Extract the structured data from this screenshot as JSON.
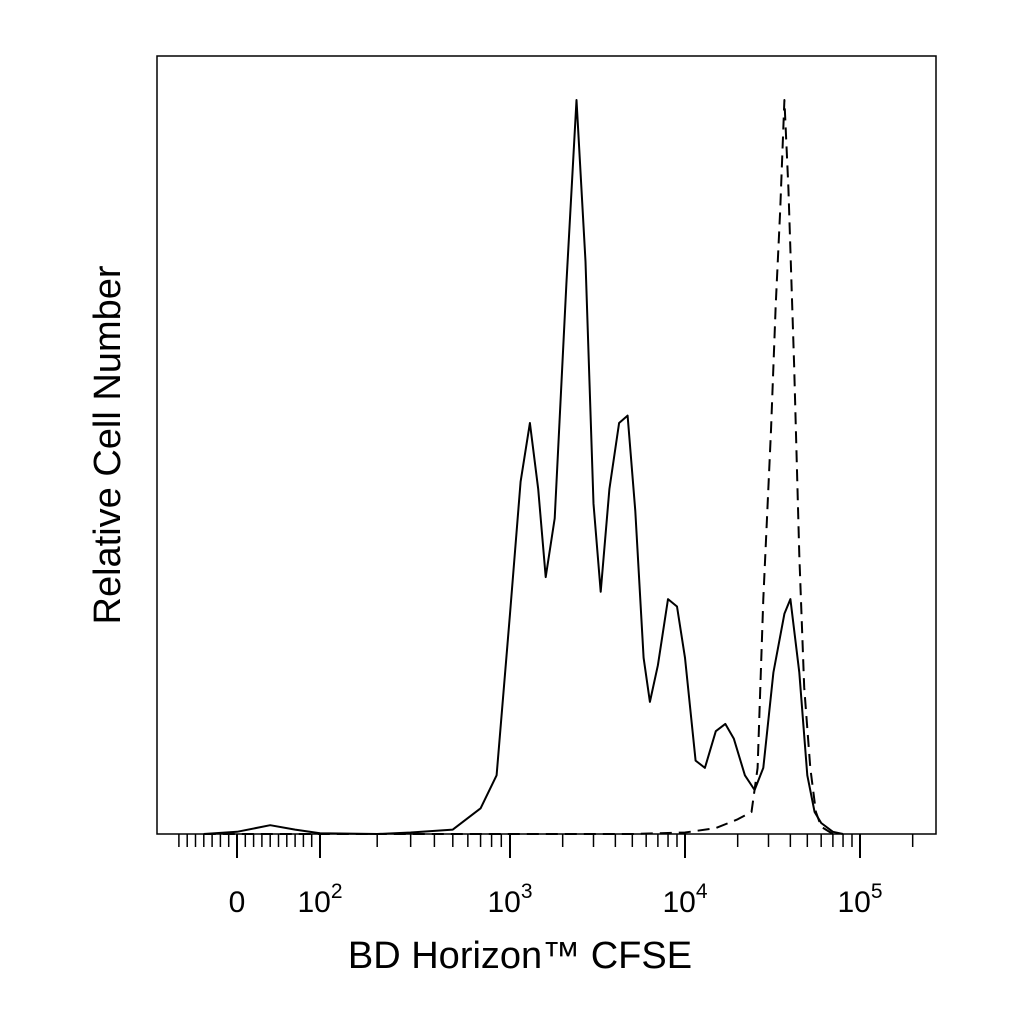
{
  "chart_data": {
    "type": "line",
    "xlabel": "BD Horizon™ CFSE",
    "ylabel": "Relative Cell Number",
    "x_scale": "biexponential",
    "y_ticks": "none",
    "grid": false,
    "x_tick_labels": [
      {
        "value": 0,
        "base": "0",
        "exp": ""
      },
      {
        "value": 100,
        "base": "10",
        "exp": "2"
      },
      {
        "value": 1000,
        "base": "10",
        "exp": "3"
      },
      {
        "value": 10000,
        "base": "10",
        "exp": "4"
      },
      {
        "value": 100000,
        "base": "10",
        "exp": "5"
      }
    ],
    "series": [
      {
        "style": "solid",
        "points": [
          [
            -40,
            0
          ],
          [
            0,
            0.3
          ],
          [
            40,
            1.2
          ],
          [
            70,
            0.6
          ],
          [
            100,
            0.1
          ],
          [
            200,
            0
          ],
          [
            300,
            0.2
          ],
          [
            500,
            0.6
          ],
          [
            700,
            3.5
          ],
          [
            850,
            8
          ],
          [
            1000,
            30
          ],
          [
            1150,
            48
          ],
          [
            1300,
            56
          ],
          [
            1450,
            47
          ],
          [
            1600,
            35
          ],
          [
            1800,
            43
          ],
          [
            2100,
            75
          ],
          [
            2400,
            100
          ],
          [
            2700,
            78
          ],
          [
            3000,
            45
          ],
          [
            3300,
            33
          ],
          [
            3700,
            47
          ],
          [
            4200,
            56
          ],
          [
            4700,
            57
          ],
          [
            5200,
            44
          ],
          [
            5800,
            24
          ],
          [
            6300,
            18
          ],
          [
            7000,
            23
          ],
          [
            8000,
            32
          ],
          [
            9000,
            31
          ],
          [
            10000,
            24
          ],
          [
            11500,
            10
          ],
          [
            13000,
            9
          ],
          [
            15000,
            14
          ],
          [
            17000,
            15
          ],
          [
            19000,
            13
          ],
          [
            22000,
            8
          ],
          [
            25000,
            6
          ],
          [
            28000,
            9
          ],
          [
            32000,
            22
          ],
          [
            37000,
            30
          ],
          [
            40000,
            32
          ],
          [
            45000,
            22
          ],
          [
            50000,
            8
          ],
          [
            55000,
            3
          ],
          [
            60000,
            1.5
          ],
          [
            70000,
            0.3
          ],
          [
            80000,
            0
          ]
        ]
      },
      {
        "style": "dashed",
        "points": [
          [
            -40,
            0
          ],
          [
            0,
            0
          ],
          [
            100,
            0
          ],
          [
            1000,
            0
          ],
          [
            5000,
            0
          ],
          [
            10000,
            0.2
          ],
          [
            15000,
            0.8
          ],
          [
            20000,
            2
          ],
          [
            24000,
            3
          ],
          [
            26000,
            9
          ],
          [
            28000,
            32
          ],
          [
            31000,
            55
          ],
          [
            33000,
            72
          ],
          [
            35000,
            85
          ],
          [
            37000,
            100
          ],
          [
            39000,
            88
          ],
          [
            42000,
            64
          ],
          [
            45000,
            38
          ],
          [
            48000,
            20
          ],
          [
            52000,
            9
          ],
          [
            56000,
            3
          ],
          [
            60000,
            1
          ],
          [
            70000,
            0
          ]
        ]
      }
    ]
  }
}
